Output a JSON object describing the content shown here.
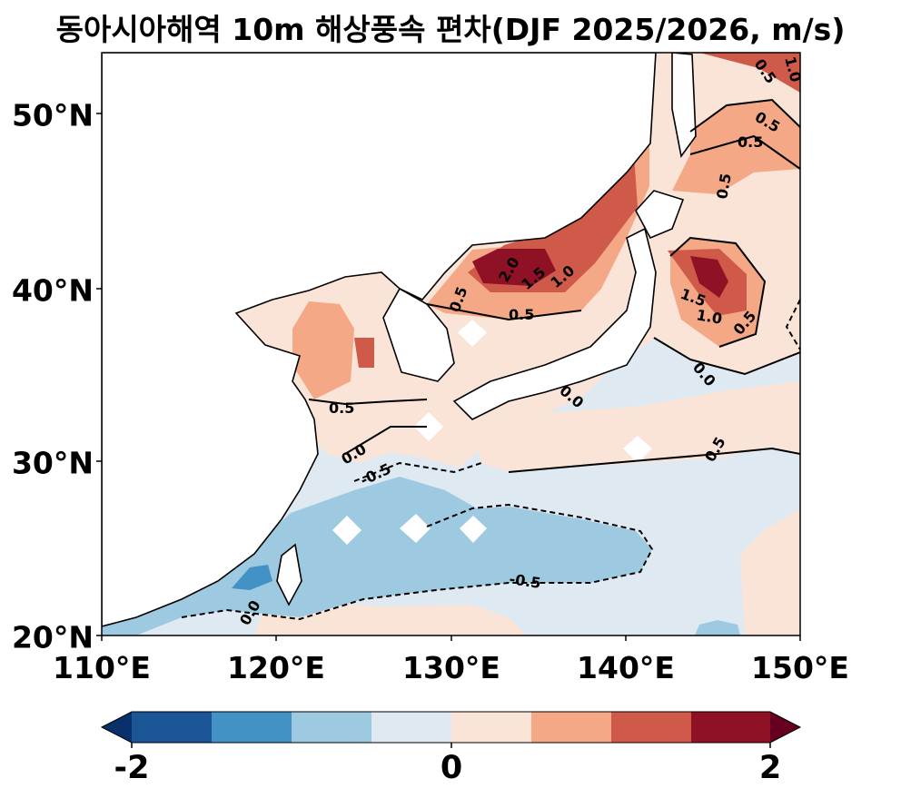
{
  "title": "동아시아해역 10m 해상풍속 편차(DJF 2025/2026, m/s)",
  "map": {
    "extent": {
      "lon": [
        110,
        150
      ],
      "lat": [
        20,
        53.5
      ]
    },
    "projection": "PlateCarree",
    "x_ticks": [
      "110°E",
      "120°E",
      "130°E",
      "140°E",
      "150°E"
    ],
    "y_ticks": [
      "50°N",
      "40°N",
      "30°N",
      "20°N"
    ],
    "contour_levels": [
      -2,
      -1.5,
      -1,
      -0.5,
      0,
      0.5,
      1,
      1.5,
      2
    ],
    "contour_labels": [
      "0.5",
      "1.0",
      "0.5",
      "0.5",
      "0.5",
      "2.0",
      "1.5",
      "1.0",
      "0.5",
      "0.5",
      "1.5",
      "1.0",
      "0.5",
      "0.0",
      "0.0",
      "0.5",
      "0.0",
      "-0.5",
      "0.5",
      "-0.5",
      "0.0"
    ],
    "land_color": "#ffffff",
    "coastline_color": "#000000"
  },
  "colorbar": {
    "colormap": "RdBu_r",
    "extend": "both",
    "colors": [
      "#08306b",
      "#1a5596",
      "#4292c6",
      "#9ecae1",
      "#dee9f2",
      "#fae4d8",
      "#f4a886",
      "#d05a4a",
      "#8f1126",
      "#67001f"
    ],
    "tick_labels": [
      "-2",
      "0",
      "2"
    ]
  }
}
